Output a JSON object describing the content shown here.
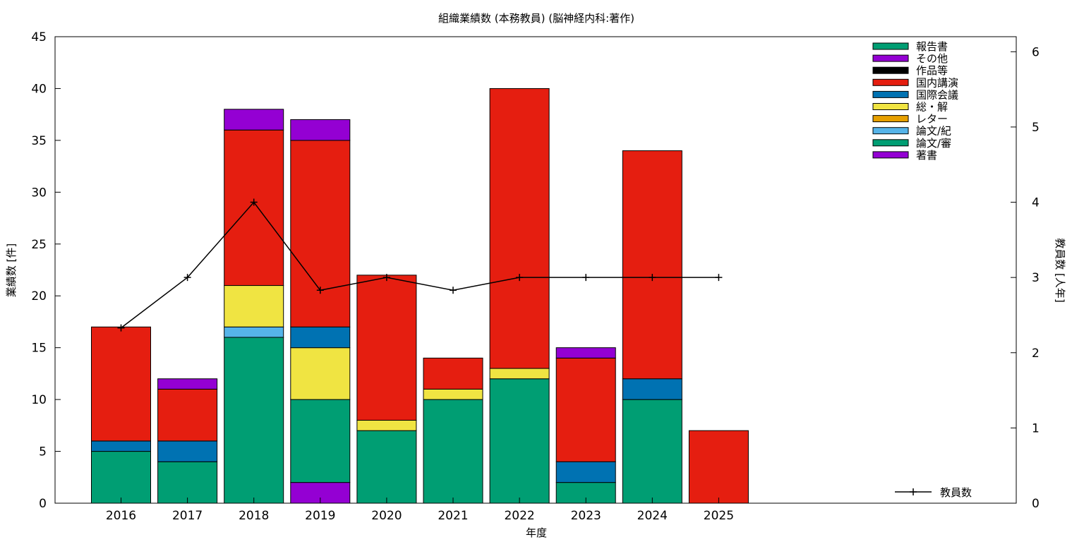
{
  "chart_data": {
    "type": "bar",
    "stacked": true,
    "title": "組織業績数 (本務教員) (脳神経内科:著作)",
    "xlabel": "年度",
    "ylabel": "業績数 [件]",
    "y2label": "教員数 [人年]",
    "ylim": [
      0,
      45
    ],
    "y2lim": [
      0,
      6.2
    ],
    "yticks": [
      "0",
      "5",
      "10",
      "15",
      "20",
      "25",
      "30",
      "35",
      "40",
      "45"
    ],
    "y2ticks": [
      "0",
      "1",
      "2",
      "3",
      "4",
      "5",
      "6"
    ],
    "grid": false,
    "legend_position": "top-right",
    "categories": [
      "2016",
      "2017",
      "2018",
      "2019",
      "2020",
      "2021",
      "2022",
      "2023",
      "2024",
      "2025"
    ],
    "series": [
      {
        "name": "著書",
        "color": "#9400d3",
        "values": [
          0,
          0,
          0,
          2,
          0,
          0,
          0,
          0,
          0,
          0
        ]
      },
      {
        "name": "論文/審",
        "color": "#009e73",
        "values": [
          5,
          4,
          16,
          8,
          7,
          10,
          12,
          2,
          10,
          0
        ]
      },
      {
        "name": "論文/紀",
        "color": "#56b4e9",
        "values": [
          0,
          0,
          1,
          0,
          0,
          0,
          0,
          0,
          0,
          0
        ]
      },
      {
        "name": "レター",
        "color": "#e69f00",
        "values": [
          0,
          0,
          0,
          0,
          0,
          0,
          0,
          0,
          0,
          0
        ]
      },
      {
        "name": "総・解",
        "color": "#f0e442",
        "values": [
          0,
          0,
          4,
          5,
          1,
          1,
          1,
          0,
          0,
          0
        ]
      },
      {
        "name": "国際会議",
        "color": "#0072b2",
        "values": [
          1,
          2,
          0,
          2,
          0,
          0,
          0,
          2,
          2,
          0
        ]
      },
      {
        "name": "国内講演",
        "color": "#e51e10",
        "values": [
          11,
          5,
          15,
          18,
          14,
          3,
          27,
          10,
          22,
          7
        ]
      },
      {
        "name": "作品等",
        "color": "#000000",
        "values": [
          0,
          0,
          0,
          0,
          0,
          0,
          0,
          0,
          0,
          0
        ]
      },
      {
        "name": "その他",
        "color": "#9400d3",
        "values": [
          0,
          1,
          2,
          2,
          0,
          0,
          0,
          1,
          0,
          0
        ]
      },
      {
        "name": "報告書",
        "color": "#009e73",
        "values": [
          0,
          0,
          0,
          0,
          0,
          0,
          0,
          0,
          0,
          0
        ]
      }
    ],
    "line_series": {
      "name": "教員数",
      "axis": "y2",
      "color": "#000000",
      "values": [
        2.33,
        3.0,
        4.0,
        2.83,
        3.0,
        2.83,
        3.0,
        3.0,
        3.0,
        3.0
      ]
    },
    "legend_order": [
      "報告書",
      "その他",
      "作品等",
      "国内講演",
      "国際会議",
      "総・解",
      "レター",
      "論文/紀",
      "論文/審",
      "著書"
    ]
  }
}
